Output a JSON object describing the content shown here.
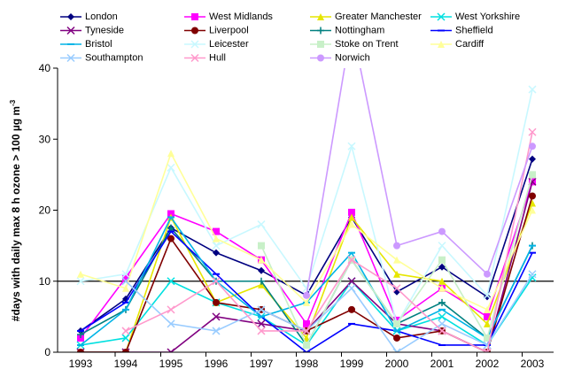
{
  "chart_data": {
    "type": "line",
    "y_label": "#days with daily max 8 h ozone > 100 µg m",
    "y_label_sup": "-3",
    "categories": [
      "1993",
      "1994",
      "1995",
      "1996",
      "1997",
      "1998",
      "1999",
      "2000",
      "2001",
      "2002",
      "2003"
    ],
    "ylim": [
      0,
      40
    ],
    "yticks": [
      0,
      10,
      20,
      30,
      40
    ],
    "hline": 10,
    "series": [
      {
        "name": "London",
        "color": "#000080",
        "marker": "diamond",
        "values": [
          3,
          7.5,
          17.5,
          14,
          11.5,
          8,
          19,
          8.5,
          12,
          7.8,
          27.2
        ]
      },
      {
        "name": "West Midlands",
        "color": "#FF00FF",
        "marker": "square",
        "values": [
          2,
          10.5,
          19.5,
          17,
          13,
          4,
          19.7,
          4.5,
          9,
          5,
          24
        ]
      },
      {
        "name": "Greater Manchester",
        "color": "#E6E600",
        "marker": "triangle",
        "values": [
          0,
          0,
          19,
          7,
          9.5,
          2,
          19,
          11,
          10,
          4,
          21
        ]
      },
      {
        "name": "West Yorkshire",
        "color": "#00E0E0",
        "marker": "x",
        "values": [
          1,
          2,
          10,
          7,
          5,
          1,
          10,
          3,
          5,
          1,
          10.5
        ]
      },
      {
        "name": "Tyneside",
        "color": "#800080",
        "marker": "x",
        "values": [
          0,
          0,
          0,
          5,
          4,
          3,
          10,
          4,
          3,
          0,
          24
        ]
      },
      {
        "name": "Liverpool",
        "color": "#800000",
        "marker": "circle",
        "values": [
          0,
          0,
          16,
          7,
          6,
          3,
          6,
          2,
          3,
          0,
          22
        ]
      },
      {
        "name": "Nottingham",
        "color": "#008080",
        "marker": "plus",
        "values": [
          2.5,
          6,
          17.5,
          10,
          10,
          1,
          13,
          4,
          7,
          2,
          15
        ]
      },
      {
        "name": "Sheffield",
        "color": "#0000FF",
        "marker": "dash",
        "values": [
          3,
          7,
          17,
          11,
          5,
          0,
          4,
          3,
          1,
          1,
          14
        ]
      },
      {
        "name": "Bristol",
        "color": "#00B4E6",
        "marker": "dash",
        "values": [
          1,
          6,
          19,
          10,
          5,
          7,
          14,
          3,
          6,
          2,
          15
        ]
      },
      {
        "name": "Leicester",
        "color": "#C8F8FF",
        "marker": "x",
        "values": [
          10,
          11,
          26,
          15,
          18,
          9,
          29,
          4,
          15,
          8,
          37
        ]
      },
      {
        "name": "Stoke on Trent",
        "color": "#C8F0C8",
        "marker": "square",
        "values": [
          null,
          null,
          null,
          null,
          15,
          1,
          13,
          4,
          13,
          2,
          25
        ]
      },
      {
        "name": "Cardiff",
        "color": "#FFFF99",
        "marker": "triangle",
        "values": [
          11,
          9,
          28,
          16,
          13,
          7,
          18,
          13,
          9,
          6,
          20
        ]
      },
      {
        "name": "Southampton",
        "color": "#99CCFF",
        "marker": "x",
        "values": [
          null,
          10,
          4,
          3,
          6,
          3,
          9,
          0,
          4,
          1,
          11
        ]
      },
      {
        "name": "Hull",
        "color": "#FF99CC",
        "marker": "x",
        "values": [
          null,
          3,
          6,
          10,
          3,
          3,
          13,
          9,
          3,
          0,
          31
        ]
      },
      {
        "name": "Norwich",
        "color": "#CC99FF",
        "marker": "circle",
        "values": [
          null,
          null,
          null,
          null,
          null,
          8,
          46,
          15,
          17,
          11,
          29
        ]
      }
    ]
  }
}
